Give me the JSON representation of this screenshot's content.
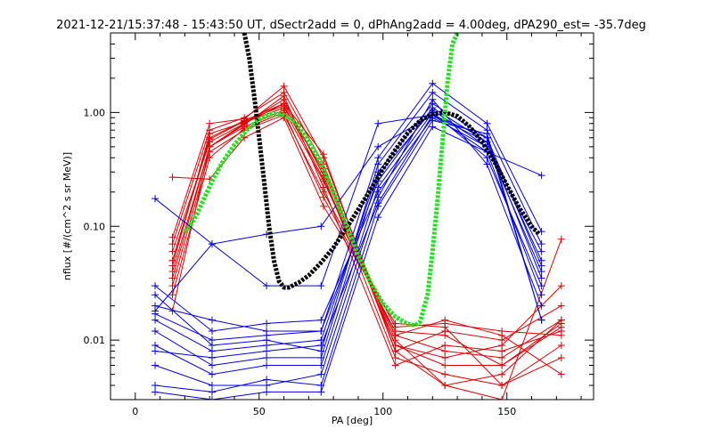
{
  "chart_data": {
    "type": "line",
    "title": "2021-12-21/15:37:48 - 15:43:50 UT, dSectr2add = 0, dPhAng2add = 4.00deg, dPA290_est= -35.7deg",
    "xlabel": "PA [deg]",
    "ylabel": "nflux [#/(cm^2 s sr MeV)]",
    "xlim": [
      -10,
      185
    ],
    "ylim": [
      0.003,
      5.0
    ],
    "yscale": "log",
    "xticks": [
      0,
      50,
      100,
      150
    ],
    "xtick_labels": [
      "0",
      "50",
      "100",
      "150"
    ],
    "yticks": [
      0.01,
      0.1,
      1.0
    ],
    "ytick_labels": [
      "0.01",
      "0.10",
      "1.00"
    ],
    "colors": {
      "red": "#e00000",
      "blue": "#0000e6",
      "black": "#000000",
      "green": "#1fe51f"
    },
    "series": [
      {
        "color": "red",
        "x": [
          15,
          30,
          44,
          60,
          76,
          105,
          125,
          148,
          172
        ],
        "y": [
          0.05,
          0.6,
          0.85,
          1.2,
          0.3,
          0.009,
          0.006,
          0.006,
          0.013
        ]
      },
      {
        "color": "red",
        "x": [
          15,
          30,
          44,
          60,
          76,
          105,
          125,
          148,
          172
        ],
        "y": [
          0.04,
          0.5,
          0.75,
          1.05,
          0.25,
          0.011,
          0.008,
          0.007,
          0.015
        ]
      },
      {
        "color": "red",
        "x": [
          15,
          30,
          44,
          60,
          76,
          105,
          125,
          148,
          172
        ],
        "y": [
          0.07,
          0.7,
          0.9,
          1.5,
          0.35,
          0.008,
          0.012,
          0.01,
          0.02
        ]
      },
      {
        "color": "red",
        "x": [
          15,
          30,
          44,
          60,
          76,
          105,
          125,
          148,
          172
        ],
        "y": [
          0.03,
          0.45,
          0.7,
          0.95,
          0.2,
          0.013,
          0.014,
          0.012,
          0.011
        ]
      },
      {
        "color": "red",
        "x": [
          15,
          30,
          44,
          60,
          76,
          105,
          125,
          148,
          172
        ],
        "y": [
          0.06,
          0.55,
          0.8,
          1.3,
          0.28,
          0.007,
          0.005,
          0.004,
          0.009
        ]
      },
      {
        "color": "red",
        "x": [
          15,
          30,
          44,
          60,
          76,
          105,
          125,
          148,
          172
        ],
        "y": [
          0.045,
          0.65,
          0.82,
          1.1,
          0.32,
          0.01,
          0.004,
          0.005,
          0.015
        ]
      },
      {
        "color": "red",
        "x": [
          15,
          30,
          44,
          60,
          76,
          105,
          125,
          148,
          172
        ],
        "y": [
          0.035,
          0.5,
          0.78,
          1.4,
          0.22,
          0.006,
          0.009,
          0.008,
          0.012
        ]
      },
      {
        "color": "red",
        "x": [
          15,
          30,
          44,
          60,
          76,
          105,
          125,
          148,
          172
        ],
        "y": [
          0.025,
          0.4,
          0.72,
          1.0,
          0.18,
          0.012,
          0.011,
          0.006,
          0.014
        ]
      },
      {
        "color": "red",
        "x": [
          15,
          30,
          44,
          60,
          76,
          105,
          125,
          148,
          172
        ],
        "y": [
          0.08,
          0.8,
          0.88,
          1.7,
          0.4,
          0.009,
          0.007,
          0.009,
          0.03
        ]
      },
      {
        "color": "red",
        "x": [
          15,
          30,
          44,
          60,
          76,
          105,
          125,
          148,
          172
        ],
        "y": [
          0.27,
          0.26,
          0.6,
          0.9,
          0.15,
          0.014,
          0.013,
          0.004,
          0.007
        ]
      },
      {
        "color": "red",
        "x": [
          15,
          30,
          44,
          60,
          76,
          105,
          125,
          148,
          172
        ],
        "y": [
          0.018,
          0.5,
          0.8,
          1.2,
          0.43,
          0.008,
          0.004,
          0.003,
          0.077
        ]
      },
      {
        "color": "red",
        "x": [
          15,
          30,
          44,
          60,
          76,
          105,
          125,
          148,
          172
        ],
        "y": [
          0.05,
          0.58,
          0.84,
          1.15,
          0.26,
          0.011,
          0.015,
          0.011,
          0.005
        ]
      },
      {
        "color": "blue",
        "x": [
          8,
          31,
          53,
          75,
          98,
          120,
          142,
          164
        ],
        "y": [
          0.175,
          0.07,
          0.085,
          0.1,
          0.5,
          0.95,
          0.45,
          0.28
        ]
      },
      {
        "color": "blue",
        "x": [
          8,
          31,
          53,
          75,
          98,
          120,
          142,
          164
        ],
        "y": [
          0.03,
          0.012,
          0.014,
          0.015,
          0.2,
          0.9,
          0.5,
          0.06
        ]
      },
      {
        "color": "blue",
        "x": [
          8,
          31,
          53,
          75,
          98,
          120,
          142,
          164
        ],
        "y": [
          0.02,
          0.015,
          0.012,
          0.012,
          0.25,
          1.1,
          0.55,
          0.05
        ]
      },
      {
        "color": "blue",
        "x": [
          8,
          31,
          53,
          75,
          98,
          120,
          142,
          164
        ],
        "y": [
          0.015,
          0.008,
          0.009,
          0.01,
          0.3,
          1.2,
          0.6,
          0.045
        ]
      },
      {
        "color": "blue",
        "x": [
          8,
          31,
          53,
          75,
          98,
          120,
          142,
          164
        ],
        "y": [
          0.009,
          0.005,
          0.006,
          0.006,
          0.22,
          1.0,
          0.4,
          0.03
        ]
      },
      {
        "color": "blue",
        "x": [
          8,
          31,
          53,
          75,
          98,
          120,
          142,
          164
        ],
        "y": [
          0.006,
          0.004,
          0.004,
          0.005,
          0.18,
          1.3,
          0.35,
          0.02
        ]
      },
      {
        "color": "blue",
        "x": [
          8,
          31,
          53,
          75,
          98,
          120,
          142,
          164
        ],
        "y": [
          0.004,
          0.0035,
          0.0045,
          0.004,
          0.15,
          0.85,
          0.65,
          0.015
        ]
      },
      {
        "color": "blue",
        "x": [
          8,
          31,
          53,
          75,
          98,
          120,
          142,
          164
        ],
        "y": [
          0.025,
          0.009,
          0.01,
          0.008,
          0.35,
          1.5,
          0.7,
          0.07
        ]
      },
      {
        "color": "blue",
        "x": [
          8,
          31,
          53,
          75,
          98,
          120,
          142,
          164
        ],
        "y": [
          0.012,
          0.006,
          0.007,
          0.007,
          0.28,
          1.05,
          0.5,
          0.04
        ]
      },
      {
        "color": "blue",
        "x": [
          8,
          31,
          53,
          75,
          98,
          120,
          142,
          164
        ],
        "y": [
          0.0035,
          0.003,
          0.0035,
          0.0035,
          0.12,
          0.75,
          0.45,
          0.025
        ]
      },
      {
        "color": "blue",
        "x": [
          8,
          31,
          53,
          75,
          98,
          120,
          142,
          164
        ],
        "y": [
          0.017,
          0.01,
          0.011,
          0.012,
          0.4,
          1.8,
          0.8,
          0.09
        ]
      },
      {
        "color": "blue",
        "x": [
          8,
          31,
          53,
          75,
          98,
          120,
          142,
          164
        ],
        "y": [
          0.008,
          0.007,
          0.008,
          0.009,
          0.16,
          0.95,
          0.55,
          0.035
        ]
      },
      {
        "color": "blue",
        "x": [
          8,
          31,
          53,
          75,
          98,
          120,
          142,
          164
        ],
        "y": [
          0.018,
          0.07,
          0.03,
          0.03,
          0.8,
          0.95,
          0.6,
          0.015
        ]
      }
    ],
    "fit_curves": [
      {
        "color": "black",
        "x": [
          44,
          46,
          48,
          50,
          52,
          54,
          56,
          58,
          60,
          62,
          66,
          70,
          75,
          80,
          85,
          90,
          95,
          100,
          105,
          110,
          115,
          120,
          125,
          130,
          135,
          140,
          145,
          150,
          155,
          160,
          163
        ],
        "y": [
          5.0,
          3.0,
          1.4,
          0.6,
          0.25,
          0.1,
          0.05,
          0.033,
          0.029,
          0.029,
          0.032,
          0.037,
          0.048,
          0.065,
          0.095,
          0.14,
          0.21,
          0.32,
          0.47,
          0.66,
          0.85,
          0.97,
          1.0,
          0.93,
          0.75,
          0.55,
          0.37,
          0.23,
          0.145,
          0.1,
          0.085
        ]
      },
      {
        "color": "green",
        "x": [
          20,
          22,
          25,
          28,
          31,
          35,
          40,
          45,
          50,
          55,
          60,
          65,
          70,
          75,
          80,
          85,
          90,
          95,
          100,
          105,
          110,
          113,
          115,
          118,
          120,
          122,
          124,
          126,
          128,
          130
        ],
        "y": [
          0.09,
          0.1,
          0.13,
          0.18,
          0.25,
          0.36,
          0.52,
          0.7,
          0.87,
          0.97,
          0.95,
          0.8,
          0.56,
          0.36,
          0.2,
          0.105,
          0.056,
          0.032,
          0.021,
          0.016,
          0.0138,
          0.0135,
          0.0145,
          0.025,
          0.06,
          0.17,
          0.55,
          1.8,
          4.0,
          5.0
        ]
      }
    ]
  }
}
